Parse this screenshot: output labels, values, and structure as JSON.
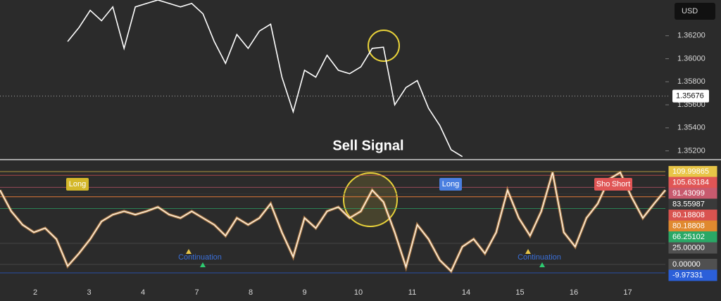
{
  "chart_data": [
    {
      "type": "line",
      "color": "#ffffff",
      "values": [
        null,
        null,
        null,
        null,
        null,
        null,
        1.3615,
        1.3627,
        1.3642,
        1.3633,
        1.3645,
        1.3609,
        1.3645,
        1.3648,
        1.3651,
        1.3648,
        1.3645,
        1.3648,
        1.3639,
        1.3615,
        1.3596,
        1.3621,
        1.3609,
        1.3624,
        1.363,
        1.3584,
        1.3554,
        1.359,
        1.3584,
        1.3603,
        1.359,
        1.3587,
        1.3593,
        1.3609,
        1.361,
        1.356,
        1.3575,
        1.3581,
        1.3557,
        1.3542,
        1.3521,
        1.3515,
        null,
        null,
        null,
        null,
        null,
        null,
        null,
        null,
        null,
        null,
        null,
        null,
        null,
        null,
        null,
        null,
        null,
        null
      ],
      "ylim": [
        1.3513,
        1.3651
      ],
      "yticks": [
        {
          "value": 1.362,
          "label": "1.36200"
        },
        {
          "value": 1.36,
          "label": "1.36000"
        },
        {
          "value": 1.358,
          "label": "1.35800"
        },
        {
          "value": 1.356,
          "label": "1.35600"
        },
        {
          "value": 1.354,
          "label": "1.35400"
        },
        {
          "value": 1.352,
          "label": "1.35200"
        }
      ],
      "last_price": {
        "value": 1.35676,
        "label": "1.35676"
      },
      "currency": "USD",
      "annotation": "Sell Signal"
    },
    {
      "type": "line",
      "color": "#fff1dc",
      "values": [
        88,
        63,
        47,
        38,
        43,
        30,
        -2,
        13,
        30,
        51,
        59,
        63,
        59,
        63,
        68,
        59,
        55,
        63,
        55,
        47,
        34,
        55,
        47,
        55,
        72,
        38,
        9,
        55,
        43,
        63,
        68,
        55,
        63,
        88,
        74,
        38,
        -3,
        47,
        30,
        5,
        -8,
        21,
        30,
        13,
        38,
        88,
        55,
        34,
        63,
        109,
        38,
        21,
        55,
        72,
        101,
        109,
        80,
        55,
        72,
        88
      ],
      "ylim": [
        -20,
        121.7
      ],
      "levels": [
        {
          "value": 109.99865,
          "label": "109.99865",
          "color": "#e8c547"
        },
        {
          "value": 105.63184,
          "label": "105.63184",
          "color": "#e05555"
        },
        {
          "value": 91.43099,
          "label": "91.43099",
          "color": "#c85a6e"
        },
        {
          "value": 83.55987,
          "label": "83.55987",
          "color": "#3a3a3a"
        },
        {
          "value": 80.18808,
          "label": "80.18808",
          "color": "#d9534f"
        },
        {
          "value": 80.18808,
          "label": "80.18808",
          "color": "#e0892f"
        },
        {
          "value": 66.25102,
          "label": "66.25102",
          "color": "#2aa866"
        },
        {
          "value": 25,
          "label": "25.00000",
          "color": "#505050"
        },
        {
          "value": 0,
          "label": "0.00000",
          "color": "#505050"
        },
        {
          "value": -9.97331,
          "label": "-9.97331",
          "color": "#2b5fd9"
        }
      ],
      "signals": [
        "Long",
        "Long",
        "Short",
        "Short"
      ],
      "continuations": [
        "Continuation",
        "Continuation"
      ],
      "x_labels": [
        2,
        3,
        4,
        7,
        8,
        9,
        10,
        11,
        14,
        15,
        16,
        17
      ]
    }
  ]
}
